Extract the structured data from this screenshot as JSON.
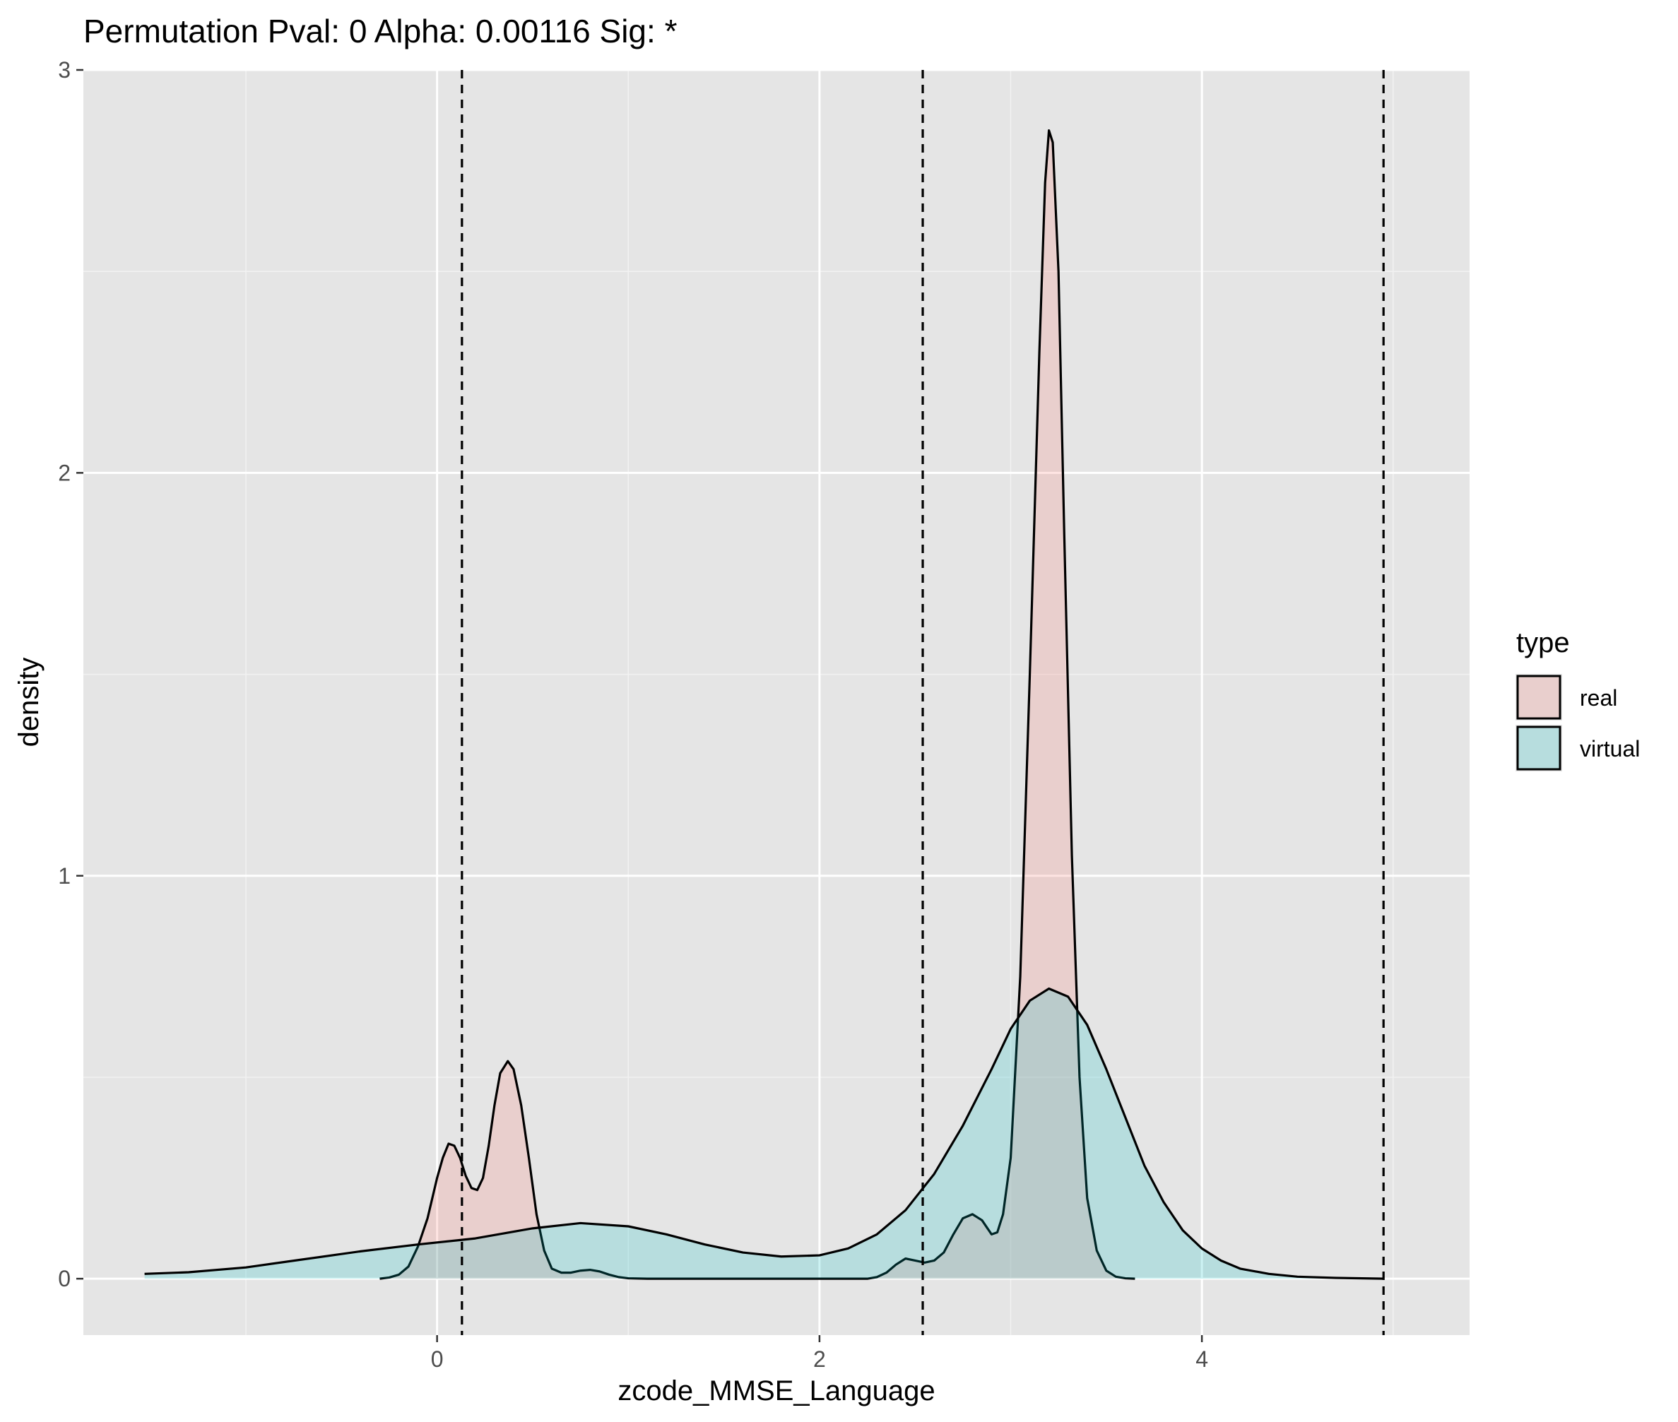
{
  "chart_data": {
    "type": "area",
    "title": "Permutation Pval: 0 Alpha: 0.00116 Sig: *",
    "xlabel": "zcode_MMSE_Language",
    "ylabel": "density",
    "xlim": [
      -1.85,
      5.4
    ],
    "ylim": [
      -0.14,
      3.0
    ],
    "x_ticks": [
      0,
      2,
      4
    ],
    "x_tick_labels": [
      "0",
      "2",
      "4"
    ],
    "y_ticks": [
      0,
      1,
      2,
      3
    ],
    "y_tick_labels": [
      "0",
      "1",
      "2",
      "3"
    ],
    "grid": true,
    "legend": {
      "title": "type",
      "position": "right",
      "entries": [
        "real",
        "virtual"
      ]
    },
    "vlines": [
      0.13,
      2.54,
      4.95
    ],
    "series": [
      {
        "name": "real",
        "fill": "#F8766D",
        "points": [
          [
            -0.3,
            0.0
          ],
          [
            -0.25,
            0.003
          ],
          [
            -0.2,
            0.01
          ],
          [
            -0.15,
            0.03
          ],
          [
            -0.1,
            0.08
          ],
          [
            -0.05,
            0.15
          ],
          [
            0.0,
            0.25
          ],
          [
            0.03,
            0.3
          ],
          [
            0.06,
            0.335
          ],
          [
            0.09,
            0.33
          ],
          [
            0.12,
            0.3
          ],
          [
            0.15,
            0.255
          ],
          [
            0.18,
            0.225
          ],
          [
            0.21,
            0.22
          ],
          [
            0.24,
            0.25
          ],
          [
            0.27,
            0.33
          ],
          [
            0.3,
            0.43
          ],
          [
            0.33,
            0.51
          ],
          [
            0.37,
            0.54
          ],
          [
            0.4,
            0.52
          ],
          [
            0.44,
            0.43
          ],
          [
            0.48,
            0.3
          ],
          [
            0.52,
            0.16
          ],
          [
            0.56,
            0.07
          ],
          [
            0.6,
            0.025
          ],
          [
            0.65,
            0.015
          ],
          [
            0.7,
            0.015
          ],
          [
            0.75,
            0.02
          ],
          [
            0.8,
            0.022
          ],
          [
            0.85,
            0.018
          ],
          [
            0.9,
            0.01
          ],
          [
            0.95,
            0.004
          ],
          [
            1.0,
            0.001
          ],
          [
            1.1,
            0.0
          ],
          [
            2.25,
            0.0
          ],
          [
            2.3,
            0.004
          ],
          [
            2.35,
            0.015
          ],
          [
            2.4,
            0.035
          ],
          [
            2.45,
            0.05
          ],
          [
            2.5,
            0.045
          ],
          [
            2.55,
            0.04
          ],
          [
            2.6,
            0.045
          ],
          [
            2.65,
            0.065
          ],
          [
            2.7,
            0.11
          ],
          [
            2.75,
            0.15
          ],
          [
            2.8,
            0.16
          ],
          [
            2.85,
            0.145
          ],
          [
            2.9,
            0.11
          ],
          [
            2.93,
            0.115
          ],
          [
            2.96,
            0.16
          ],
          [
            3.0,
            0.3
          ],
          [
            3.05,
            0.75
          ],
          [
            3.1,
            1.5
          ],
          [
            3.15,
            2.3
          ],
          [
            3.18,
            2.72
          ],
          [
            3.2,
            2.85
          ],
          [
            3.22,
            2.82
          ],
          [
            3.25,
            2.5
          ],
          [
            3.28,
            1.85
          ],
          [
            3.32,
            1.05
          ],
          [
            3.36,
            0.5
          ],
          [
            3.4,
            0.2
          ],
          [
            3.45,
            0.07
          ],
          [
            3.5,
            0.02
          ],
          [
            3.55,
            0.005
          ],
          [
            3.6,
            0.001
          ],
          [
            3.65,
            0.0
          ]
        ]
      },
      {
        "name": "virtual",
        "fill": "#00BFC4",
        "points": [
          [
            -1.53,
            0.012
          ],
          [
            -1.3,
            0.016
          ],
          [
            -1.0,
            0.028
          ],
          [
            -0.7,
            0.048
          ],
          [
            -0.4,
            0.068
          ],
          [
            -0.1,
            0.085
          ],
          [
            0.2,
            0.1
          ],
          [
            0.5,
            0.125
          ],
          [
            0.75,
            0.138
          ],
          [
            1.0,
            0.13
          ],
          [
            1.2,
            0.11
          ],
          [
            1.4,
            0.085
          ],
          [
            1.6,
            0.065
          ],
          [
            1.8,
            0.055
          ],
          [
            2.0,
            0.058
          ],
          [
            2.15,
            0.075
          ],
          [
            2.3,
            0.11
          ],
          [
            2.45,
            0.17
          ],
          [
            2.6,
            0.26
          ],
          [
            2.75,
            0.38
          ],
          [
            2.9,
            0.52
          ],
          [
            3.0,
            0.62
          ],
          [
            3.1,
            0.69
          ],
          [
            3.2,
            0.72
          ],
          [
            3.3,
            0.7
          ],
          [
            3.4,
            0.63
          ],
          [
            3.5,
            0.52
          ],
          [
            3.6,
            0.4
          ],
          [
            3.7,
            0.28
          ],
          [
            3.8,
            0.19
          ],
          [
            3.9,
            0.12
          ],
          [
            4.0,
            0.075
          ],
          [
            4.1,
            0.045
          ],
          [
            4.2,
            0.025
          ],
          [
            4.35,
            0.012
          ],
          [
            4.5,
            0.005
          ],
          [
            4.7,
            0.002
          ],
          [
            4.95,
            0.0
          ]
        ]
      }
    ]
  }
}
